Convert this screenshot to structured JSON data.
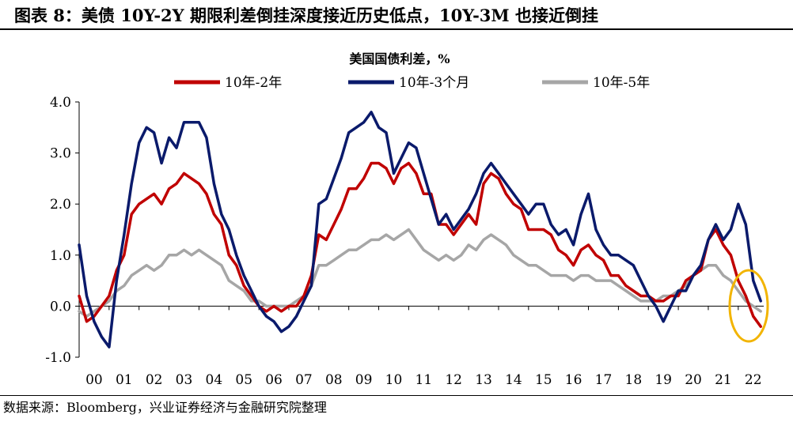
{
  "figure": {
    "title": "图表 8：美债 10Y-2Y 期限利差倒挂深度接近历史低点，10Y-3M 也接近倒挂",
    "source": "数据来源：Bloomberg，兴业证券经济与金融研究院整理"
  },
  "chart_data": {
    "type": "line",
    "title": "美国国债利差，%",
    "xlabel": "",
    "ylabel": "",
    "ylim": [
      -1.0,
      4.0
    ],
    "y_ticks": [
      "4.0",
      "3.0",
      "2.0",
      "1.0",
      "0.0",
      "-1.0"
    ],
    "y_tick_values": [
      4.0,
      3.0,
      2.0,
      1.0,
      0.0,
      -1.0
    ],
    "x_ticks": [
      "00",
      "01",
      "02",
      "03",
      "04",
      "05",
      "06",
      "07",
      "08",
      "09",
      "10",
      "11",
      "12",
      "13",
      "14",
      "15",
      "16",
      "17",
      "18",
      "19",
      "20",
      "21",
      "22"
    ],
    "xlim": [
      2000.0,
      2022.85
    ],
    "legend_position": "top",
    "annotation": "orange ellipse highlighting the 2022 inversion",
    "series": [
      {
        "name": "10年-2年",
        "color": "#c00000",
        "x": [
          2000.0,
          2000.25,
          2000.5,
          2000.75,
          2001.0,
          2001.25,
          2001.5,
          2001.75,
          2002.0,
          2002.25,
          2002.5,
          2002.75,
          2003.0,
          2003.25,
          2003.5,
          2003.75,
          2004.0,
          2004.25,
          2004.5,
          2004.75,
          2005.0,
          2005.25,
          2005.5,
          2005.75,
          2006.0,
          2006.25,
          2006.5,
          2006.75,
          2007.0,
          2007.25,
          2007.5,
          2007.75,
          2008.0,
          2008.25,
          2008.5,
          2008.75,
          2009.0,
          2009.25,
          2009.5,
          2009.75,
          2010.0,
          2010.25,
          2010.5,
          2010.75,
          2011.0,
          2011.25,
          2011.5,
          2011.75,
          2012.0,
          2012.25,
          2012.5,
          2012.75,
          2013.0,
          2013.25,
          2013.5,
          2013.75,
          2014.0,
          2014.25,
          2014.5,
          2014.75,
          2015.0,
          2015.25,
          2015.5,
          2015.75,
          2016.0,
          2016.25,
          2016.5,
          2016.75,
          2017.0,
          2017.25,
          2017.5,
          2017.75,
          2018.0,
          2018.25,
          2018.5,
          2018.75,
          2019.0,
          2019.25,
          2019.5,
          2019.75,
          2020.0,
          2020.25,
          2020.5,
          2020.75,
          2021.0,
          2021.25,
          2021.5,
          2021.75,
          2022.0,
          2022.25,
          2022.5,
          2022.75
        ],
        "values": [
          0.2,
          -0.3,
          -0.2,
          0.0,
          0.2,
          0.7,
          1.0,
          1.8,
          2.0,
          2.1,
          2.2,
          2.0,
          2.3,
          2.4,
          2.6,
          2.5,
          2.4,
          2.2,
          1.8,
          1.6,
          1.0,
          0.8,
          0.4,
          0.2,
          0.0,
          -0.1,
          0.0,
          -0.1,
          0.0,
          0.0,
          0.2,
          0.6,
          1.4,
          1.3,
          1.6,
          1.9,
          2.3,
          2.3,
          2.5,
          2.8,
          2.8,
          2.7,
          2.4,
          2.7,
          2.8,
          2.6,
          2.2,
          2.2,
          1.6,
          1.6,
          1.4,
          1.6,
          1.8,
          1.6,
          2.4,
          2.6,
          2.5,
          2.2,
          2.0,
          1.9,
          1.5,
          1.5,
          1.5,
          1.4,
          1.1,
          1.0,
          0.8,
          1.1,
          1.2,
          1.0,
          0.9,
          0.6,
          0.6,
          0.4,
          0.3,
          0.2,
          0.2,
          0.1,
          0.1,
          0.2,
          0.2,
          0.5,
          0.6,
          0.7,
          1.3,
          1.5,
          1.2,
          1.0,
          0.5,
          0.2,
          -0.2,
          -0.4
        ]
      },
      {
        "name": "10年-3个月",
        "color": "#0a1a6b",
        "x": [
          2000.0,
          2000.25,
          2000.5,
          2000.75,
          2001.0,
          2001.25,
          2001.5,
          2001.75,
          2002.0,
          2002.25,
          2002.5,
          2002.75,
          2003.0,
          2003.25,
          2003.5,
          2003.75,
          2004.0,
          2004.25,
          2004.5,
          2004.75,
          2005.0,
          2005.25,
          2005.5,
          2005.75,
          2006.0,
          2006.25,
          2006.5,
          2006.75,
          2007.0,
          2007.25,
          2007.5,
          2007.75,
          2008.0,
          2008.25,
          2008.5,
          2008.75,
          2009.0,
          2009.25,
          2009.5,
          2009.75,
          2010.0,
          2010.25,
          2010.5,
          2010.75,
          2011.0,
          2011.25,
          2011.5,
          2011.75,
          2012.0,
          2012.25,
          2012.5,
          2012.75,
          2013.0,
          2013.25,
          2013.5,
          2013.75,
          2014.0,
          2014.25,
          2014.5,
          2014.75,
          2015.0,
          2015.25,
          2015.5,
          2015.75,
          2016.0,
          2016.25,
          2016.5,
          2016.75,
          2017.0,
          2017.25,
          2017.5,
          2017.75,
          2018.0,
          2018.25,
          2018.5,
          2018.75,
          2019.0,
          2019.25,
          2019.5,
          2019.75,
          2020.0,
          2020.25,
          2020.5,
          2020.75,
          2021.0,
          2021.25,
          2021.5,
          2021.75,
          2022.0,
          2022.25,
          2022.5,
          2022.75
        ],
        "values": [
          1.2,
          0.2,
          -0.3,
          -0.6,
          -0.8,
          0.5,
          1.4,
          2.4,
          3.2,
          3.5,
          3.4,
          2.8,
          3.3,
          3.1,
          3.6,
          3.6,
          3.6,
          3.3,
          2.4,
          1.8,
          1.5,
          1.0,
          0.6,
          0.3,
          0.0,
          -0.2,
          -0.3,
          -0.5,
          -0.4,
          -0.2,
          0.1,
          0.4,
          2.0,
          2.1,
          2.5,
          2.9,
          3.4,
          3.5,
          3.6,
          3.8,
          3.5,
          3.4,
          2.6,
          2.9,
          3.2,
          3.1,
          2.6,
          2.1,
          1.6,
          1.8,
          1.5,
          1.7,
          1.9,
          2.2,
          2.6,
          2.8,
          2.6,
          2.4,
          2.2,
          2.0,
          1.8,
          2.0,
          2.0,
          1.6,
          1.4,
          1.5,
          1.2,
          1.8,
          2.2,
          1.5,
          1.2,
          1.0,
          1.0,
          0.9,
          0.8,
          0.5,
          0.2,
          0.0,
          -0.3,
          0.0,
          0.3,
          0.3,
          0.6,
          0.8,
          1.3,
          1.6,
          1.3,
          1.5,
          2.0,
          1.6,
          0.5,
          0.1
        ]
      },
      {
        "name": "10年-5年",
        "color": "#a6a6a6",
        "x": [
          2000.0,
          2000.25,
          2000.5,
          2000.75,
          2001.0,
          2001.25,
          2001.5,
          2001.75,
          2002.0,
          2002.25,
          2002.5,
          2002.75,
          2003.0,
          2003.25,
          2003.5,
          2003.75,
          2004.0,
          2004.25,
          2004.5,
          2004.75,
          2005.0,
          2005.25,
          2005.5,
          2005.75,
          2006.0,
          2006.25,
          2006.5,
          2006.75,
          2007.0,
          2007.25,
          2007.5,
          2007.75,
          2008.0,
          2008.25,
          2008.5,
          2008.75,
          2009.0,
          2009.25,
          2009.5,
          2009.75,
          2010.0,
          2010.25,
          2010.5,
          2010.75,
          2011.0,
          2011.25,
          2011.5,
          2011.75,
          2012.0,
          2012.25,
          2012.5,
          2012.75,
          2013.0,
          2013.25,
          2013.5,
          2013.75,
          2014.0,
          2014.25,
          2014.5,
          2014.75,
          2015.0,
          2015.25,
          2015.5,
          2015.75,
          2016.0,
          2016.25,
          2016.5,
          2016.75,
          2017.0,
          2017.25,
          2017.5,
          2017.75,
          2018.0,
          2018.25,
          2018.5,
          2018.75,
          2019.0,
          2019.25,
          2019.5,
          2019.75,
          2020.0,
          2020.25,
          2020.5,
          2020.75,
          2021.0,
          2021.25,
          2021.5,
          2021.75,
          2022.0,
          2022.25,
          2022.5,
          2022.75
        ],
        "values": [
          -0.1,
          -0.2,
          -0.1,
          0.0,
          0.1,
          0.3,
          0.4,
          0.6,
          0.7,
          0.8,
          0.7,
          0.8,
          1.0,
          1.0,
          1.1,
          1.0,
          1.1,
          1.0,
          0.9,
          0.8,
          0.5,
          0.4,
          0.3,
          0.1,
          0.1,
          0.0,
          0.0,
          0.0,
          0.0,
          0.1,
          0.2,
          0.4,
          0.8,
          0.8,
          0.9,
          1.0,
          1.1,
          1.1,
          1.2,
          1.3,
          1.3,
          1.4,
          1.3,
          1.4,
          1.5,
          1.3,
          1.1,
          1.0,
          0.9,
          1.0,
          0.9,
          1.0,
          1.2,
          1.1,
          1.3,
          1.4,
          1.3,
          1.2,
          1.0,
          0.9,
          0.8,
          0.8,
          0.7,
          0.6,
          0.6,
          0.6,
          0.5,
          0.6,
          0.6,
          0.5,
          0.5,
          0.5,
          0.4,
          0.3,
          0.2,
          0.1,
          0.1,
          0.1,
          0.2,
          0.2,
          0.3,
          0.4,
          0.6,
          0.7,
          0.8,
          0.8,
          0.6,
          0.5,
          0.3,
          0.1,
          0.0,
          -0.1
        ]
      }
    ]
  }
}
